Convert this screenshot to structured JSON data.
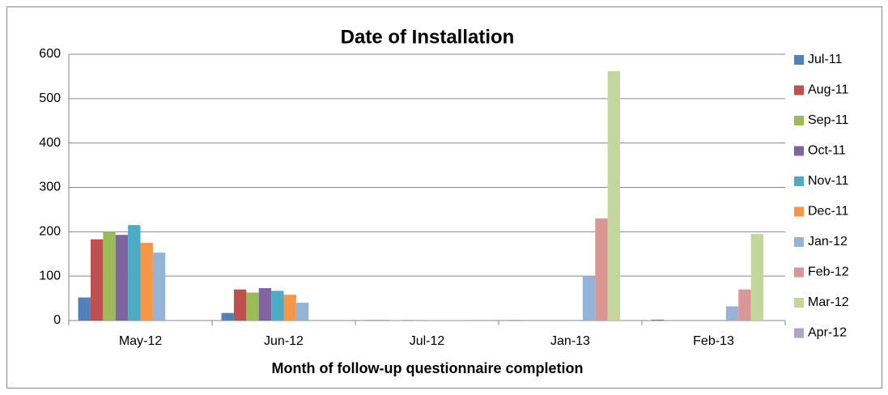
{
  "chart_data": {
    "type": "bar",
    "title": "Date of Installation",
    "x_label": "Month of  follow-up questionnaire completion",
    "categories": [
      "May-12",
      "Jun-12",
      "Jul-12",
      "Jan-13",
      "Feb-13"
    ],
    "series": [
      {
        "name": "Jul-11",
        "color": "#4f81bd",
        "values": [
          52,
          17,
          1,
          1,
          2
        ]
      },
      {
        "name": "Aug-11",
        "color": "#c0504d",
        "values": [
          183,
          70,
          1,
          0,
          0
        ]
      },
      {
        "name": "Sep-11",
        "color": "#9bbb59",
        "values": [
          200,
          63,
          1,
          0,
          0
        ]
      },
      {
        "name": "Oct-11",
        "color": "#8064a2",
        "values": [
          193,
          73,
          1,
          0,
          0
        ]
      },
      {
        "name": "Nov-11",
        "color": "#4bacc6",
        "values": [
          215,
          67,
          1,
          0,
          0
        ]
      },
      {
        "name": "Dec-11",
        "color": "#f79646",
        "values": [
          175,
          58,
          1,
          0,
          0
        ]
      },
      {
        "name": "Jan-12",
        "color": "#95b3d7",
        "values": [
          153,
          40,
          1,
          100,
          32
        ]
      },
      {
        "name": "Feb-12",
        "color": "#d99694",
        "values": [
          0,
          0,
          1,
          230,
          70
        ]
      },
      {
        "name": "Mar-12",
        "color": "#c3d69b",
        "values": [
          0,
          0,
          0,
          562,
          195
        ]
      },
      {
        "name": "Apr-12",
        "color": "#b3a2c7",
        "values": [
          0,
          0,
          0,
          0,
          0
        ]
      }
    ],
    "ylim": [
      0,
      600
    ],
    "yticks": [
      0,
      100,
      200,
      300,
      400,
      500,
      600
    ],
    "grid": true,
    "legend": "right"
  }
}
